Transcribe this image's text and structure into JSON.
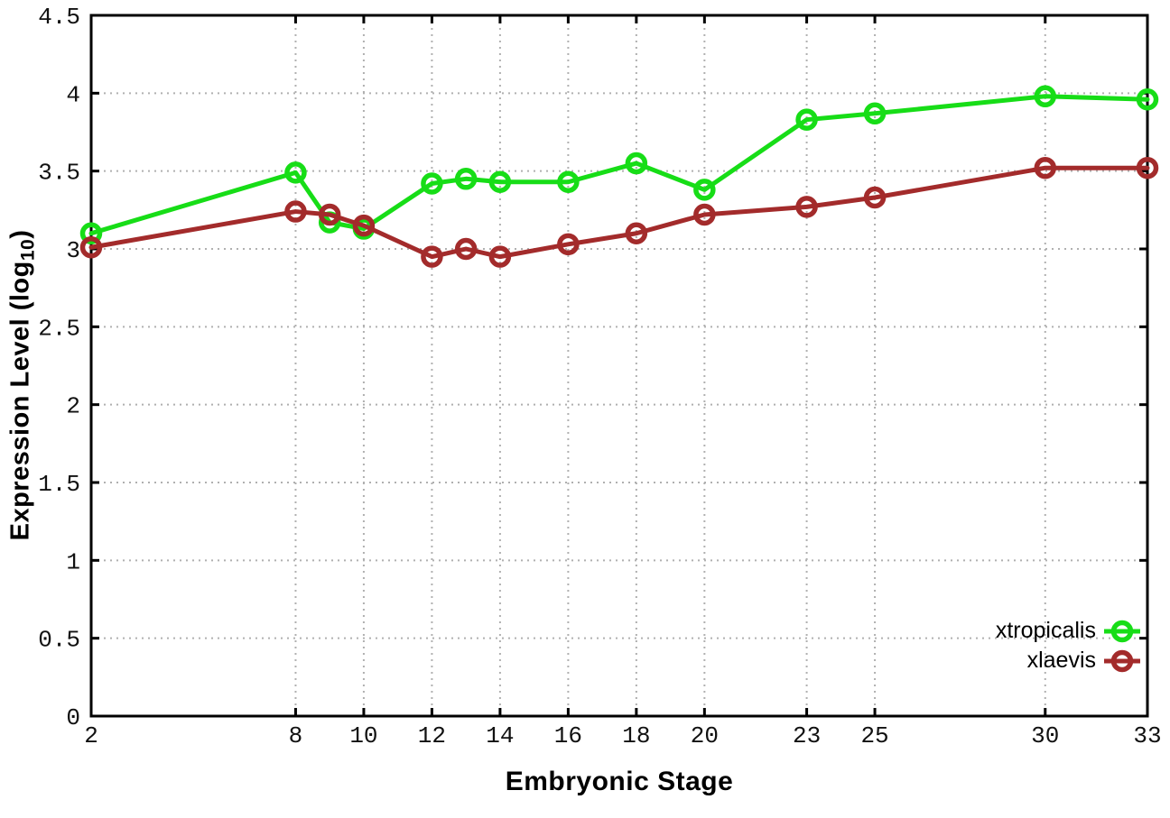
{
  "figure": {
    "background": "#ffffff",
    "grid_color": "#b0b0b0",
    "axis_color": "#000000",
    "tick_label_color": "#111111"
  },
  "axis_titles": {
    "y_prefix": "Expression Level (log",
    "y_subscript": "10",
    "y_suffix": ")",
    "x": "Embryonic Stage"
  },
  "legend": {
    "entries": [
      {
        "label": "xtropicalis",
        "color": "#17dd17"
      },
      {
        "label": "xlaevis",
        "color": "#a32b2b"
      }
    ]
  },
  "chart_data": {
    "type": "line",
    "title": "",
    "xlabel": "Embryonic Stage",
    "ylabel": "Expression Level (log10)",
    "xlim": [
      2,
      33
    ],
    "ylim": [
      0,
      4.5
    ],
    "grid": true,
    "legend_position": "bottom-right",
    "marker": "open-circle",
    "x": [
      2,
      8,
      9,
      10,
      12,
      13,
      14,
      16,
      18,
      20,
      23,
      25,
      30,
      33
    ],
    "series": [
      {
        "name": "xtropicalis",
        "color": "#17dd17",
        "values": [
          3.1,
          3.49,
          3.17,
          3.13,
          3.42,
          3.45,
          3.43,
          3.43,
          3.55,
          3.38,
          3.83,
          3.87,
          3.98,
          3.96
        ]
      },
      {
        "name": "xlaevis",
        "color": "#a32b2b",
        "values": [
          3.01,
          3.24,
          3.22,
          3.15,
          2.95,
          3.0,
          2.95,
          3.03,
          3.1,
          3.22,
          3.27,
          3.33,
          3.52,
          3.52
        ]
      }
    ],
    "xticks": {
      "values": [
        2,
        8,
        10,
        12,
        14,
        16,
        18,
        20,
        23,
        25,
        30,
        33
      ],
      "labels": [
        "2",
        "8",
        "10",
        "12",
        "14",
        "16",
        "18",
        "20",
        "23",
        "25",
        "30",
        "33"
      ]
    },
    "yticks": {
      "values": [
        0,
        0.5,
        1,
        1.5,
        2,
        2.5,
        3,
        3.5,
        4,
        4.5
      ],
      "labels": [
        "0",
        "0.5",
        "1",
        "1.5",
        "2",
        "2.5",
        "3",
        "3.5",
        "4",
        "4.5"
      ]
    }
  }
}
